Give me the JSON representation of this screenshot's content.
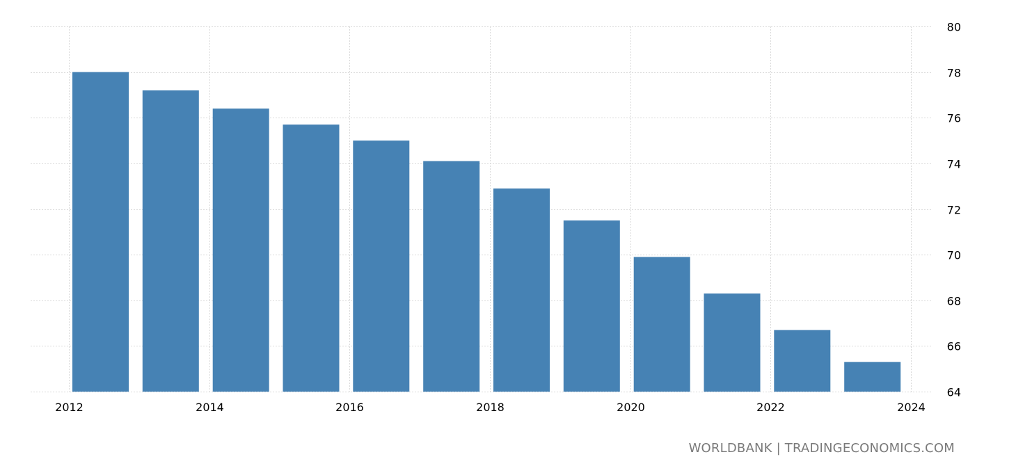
{
  "chart_data": {
    "type": "bar",
    "title": "",
    "xlabel": "",
    "ylabel": "",
    "categories": [
      "2012",
      "2013",
      "2014",
      "2015",
      "2016",
      "2017",
      "2018",
      "2019",
      "2020",
      "2021",
      "2022",
      "2023"
    ],
    "values": [
      78.0,
      77.2,
      76.4,
      75.7,
      75.0,
      74.1,
      72.9,
      71.5,
      69.9,
      68.3,
      66.7,
      65.3
    ],
    "x_tick_labels": [
      "2012",
      "2014",
      "2016",
      "2018",
      "2020",
      "2022",
      "2024"
    ],
    "x_range": [
      2012,
      2024
    ],
    "y_tick_labels": [
      "64",
      "66",
      "68",
      "70",
      "72",
      "74",
      "76",
      "78",
      "80"
    ],
    "ylim": [
      64,
      80
    ],
    "y_axis_side": "right",
    "grid": true,
    "legend": "none",
    "bar_color": "#4682b4",
    "grid_color": "#d9d9d9"
  },
  "source_text": "WORLDBANK | TRADINGECONOMICS.COM"
}
